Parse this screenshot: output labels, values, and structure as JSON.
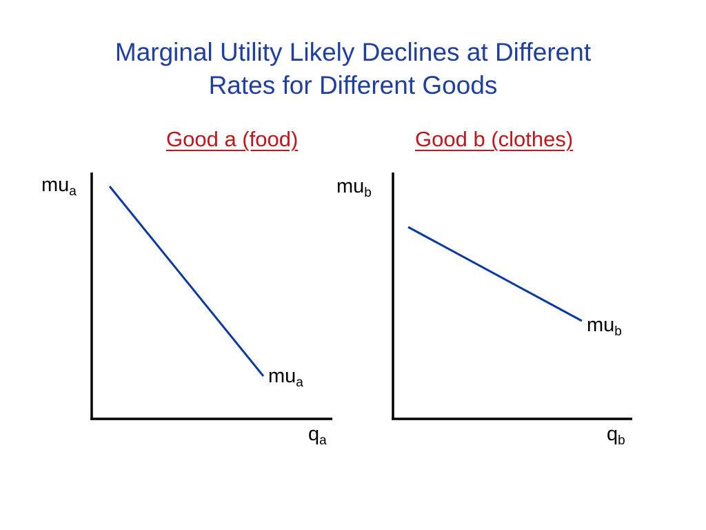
{
  "title": {
    "line1": "Marginal Utility Likely Declines at Different",
    "line2": "Rates for Different Goods"
  },
  "panels": [
    {
      "heading": "Good a (food)",
      "y_axis": {
        "main": "mu",
        "sub": "a"
      },
      "x_axis": {
        "main": "q",
        "sub": "a"
      },
      "curve_label": {
        "main": "mu",
        "sub": "a"
      }
    },
    {
      "heading": "Good b (clothes)",
      "y_axis": {
        "main": "mu",
        "sub": "b"
      },
      "x_axis": {
        "main": "q",
        "sub": "b"
      },
      "curve_label": {
        "main": "mu",
        "sub": "b"
      }
    }
  ],
  "colors": {
    "title": "#1f3fa0",
    "heading": "#c0161b",
    "curve": "#0b3a9e",
    "axis": "#000000"
  }
}
